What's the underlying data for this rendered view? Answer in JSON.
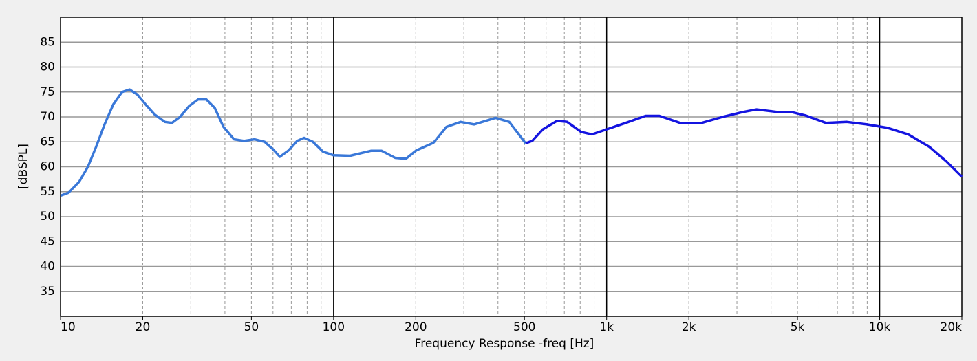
{
  "chart_data": {
    "type": "line",
    "xlabel": "Frequency Response -freq [Hz]",
    "ylabel": "[dBSPL]",
    "log_x": true,
    "xlim": [
      10,
      20000
    ],
    "ylim": [
      30,
      90
    ],
    "xticks": [
      10,
      20,
      50,
      100,
      200,
      500,
      {
        "value": 1000,
        "label": "1k"
      },
      {
        "value": 2000,
        "label": "2k"
      },
      {
        "value": 5000,
        "label": "5k"
      },
      {
        "value": 10000,
        "label": "10k"
      },
      {
        "value": 20000,
        "label": "20k"
      }
    ],
    "yticks": [
      35,
      40,
      45,
      50,
      55,
      60,
      65,
      70,
      75,
      80,
      85
    ],
    "x_major_grid": [
      100,
      1000,
      10000
    ],
    "x_minor_grid": [
      20,
      30,
      40,
      50,
      60,
      70,
      80,
      90,
      200,
      300,
      400,
      500,
      600,
      700,
      800,
      900,
      2000,
      3000,
      4000,
      5000,
      6000,
      7000,
      8000,
      9000
    ],
    "grid": true,
    "series": [
      {
        "color": "#3a78d8",
        "x": [
          10,
          10.7,
          11.7,
          12.6,
          13.5,
          14.5,
          15.6,
          16.8,
          17.9,
          19.1,
          20.5,
          22.1,
          24.1,
          25.6,
          27.4,
          29.6,
          31.9,
          34.2,
          36.7,
          39.5,
          43.2,
          47,
          51.3,
          55.9,
          60,
          63.6,
          68.5,
          73.6,
          78,
          84,
          91.6,
          100,
          115,
          137,
          150,
          168,
          184,
          201,
          232,
          259,
          292,
          327,
          392,
          440,
          477,
          505
        ],
        "values": [
          54.2,
          54.8,
          57,
          60,
          64,
          68.5,
          72.5,
          75,
          75.5,
          74.5,
          72.5,
          70.5,
          69,
          68.8,
          70,
          72.2,
          73.5,
          73.5,
          71.8,
          68,
          65.5,
          65.2,
          65.5,
          65,
          63.5,
          62,
          63.3,
          65.2,
          65.8,
          65,
          63,
          62.3,
          62.2,
          63.2,
          63.2,
          61.8,
          61.6,
          63.3,
          64.8,
          68,
          69,
          68.5,
          69.8,
          69,
          66.5,
          64.7
        ]
      },
      {
        "color": "#1414e0",
        "x": [
          505,
          534,
          584,
          658,
          717,
          806,
          884,
          1000,
          1176,
          1389,
          1560,
          1856,
          2230,
          2660,
          3160,
          3540,
          4220,
          4740,
          5340,
          6350,
          7590,
          8980,
          10690,
          12720,
          15200,
          17600,
          20000
        ],
        "values": [
          64.7,
          65.2,
          67.5,
          69.2,
          69,
          67,
          66.5,
          67.5,
          68.8,
          70.2,
          70.2,
          68.8,
          68.8,
          70,
          71,
          71.5,
          71,
          71,
          70.3,
          68.8,
          69,
          68.5,
          67.8,
          66.5,
          64,
          61,
          58
        ]
      }
    ]
  }
}
